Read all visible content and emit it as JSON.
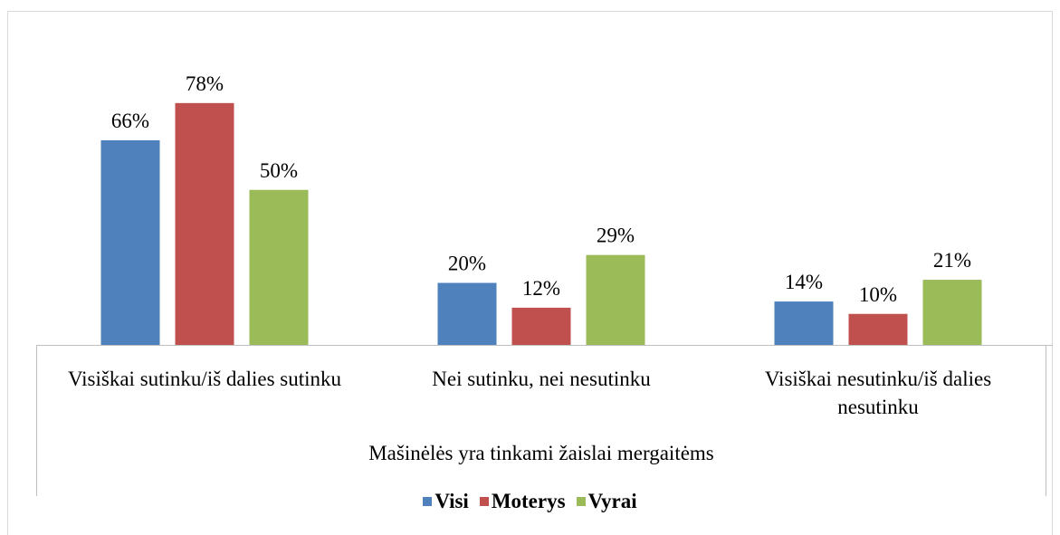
{
  "chart_data": {
    "type": "bar",
    "categories": [
      "Visiškai sutinku/iš dalies sutinku",
      "Nei sutinku, nei nesutinku",
      "Visiškai nesutinku/iš dalies nesutinku"
    ],
    "xlabel": "Mašinėlės yra tinkami žaislai mergaitėms",
    "series": [
      {
        "name": "Visi",
        "color": "#4f81bd",
        "values": [
          66,
          20,
          14
        ],
        "value_labels": [
          "66%",
          "20%",
          "14%"
        ]
      },
      {
        "name": "Moterys",
        "color": "#c0504d",
        "values": [
          78,
          12,
          10
        ],
        "value_labels": [
          "78%",
          "12%",
          "10%"
        ]
      },
      {
        "name": "Vyrai",
        "color": "#9bbb59",
        "values": [
          50,
          29,
          21
        ],
        "value_labels": [
          "50%",
          "29%",
          "21%"
        ]
      }
    ],
    "ylim": [
      0,
      80
    ],
    "grid": false,
    "legend": "bottom"
  }
}
